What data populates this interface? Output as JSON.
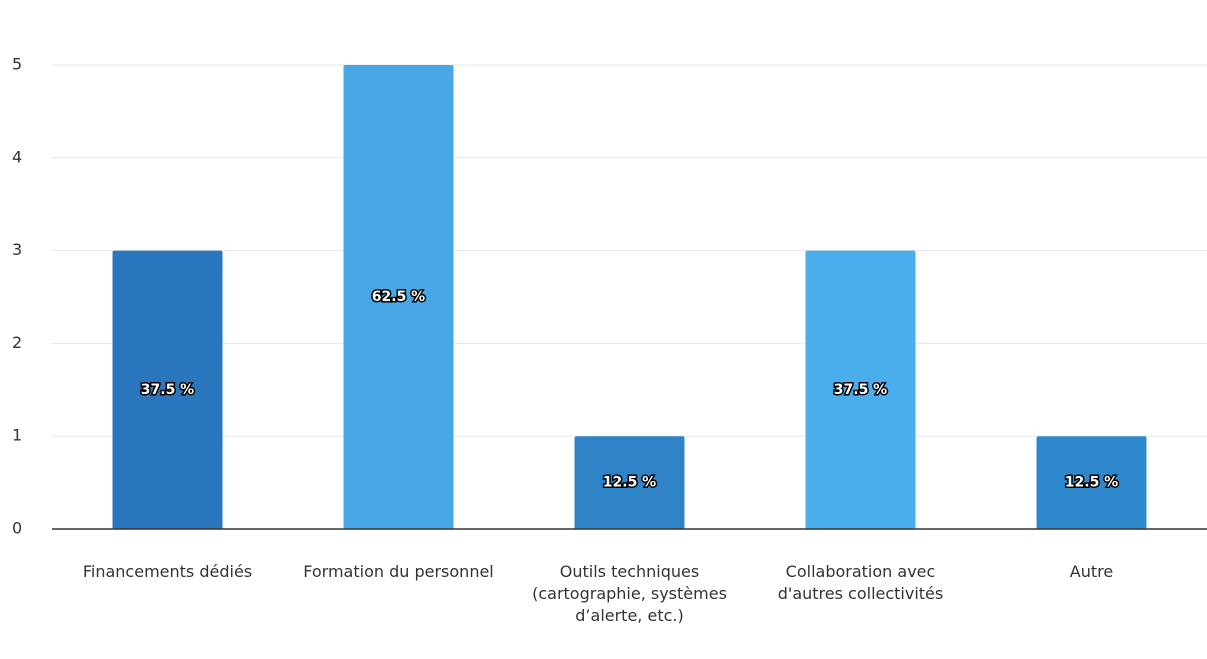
{
  "chart_data": {
    "type": "bar",
    "categories": [
      "Financements dédiés",
      "Formation du personnel",
      "Outils techniques (cartographie, systèmes d’alerte, etc.)",
      "Collaboration avec d'autres collectivités",
      "Autre"
    ],
    "values": [
      3,
      5,
      1,
      3,
      1
    ],
    "data_labels": [
      "37.5 %",
      "62.5 %",
      "12.5 %",
      "37.5 %",
      "12.5 %"
    ],
    "colors": [
      "#2a77bd",
      "#47a8e5",
      "#2f84c8",
      "#4aaeec",
      "#3088cc"
    ],
    "ylim": [
      0,
      5
    ],
    "yticks": [
      0,
      1,
      2,
      3,
      4,
      5
    ],
    "grid": true
  }
}
